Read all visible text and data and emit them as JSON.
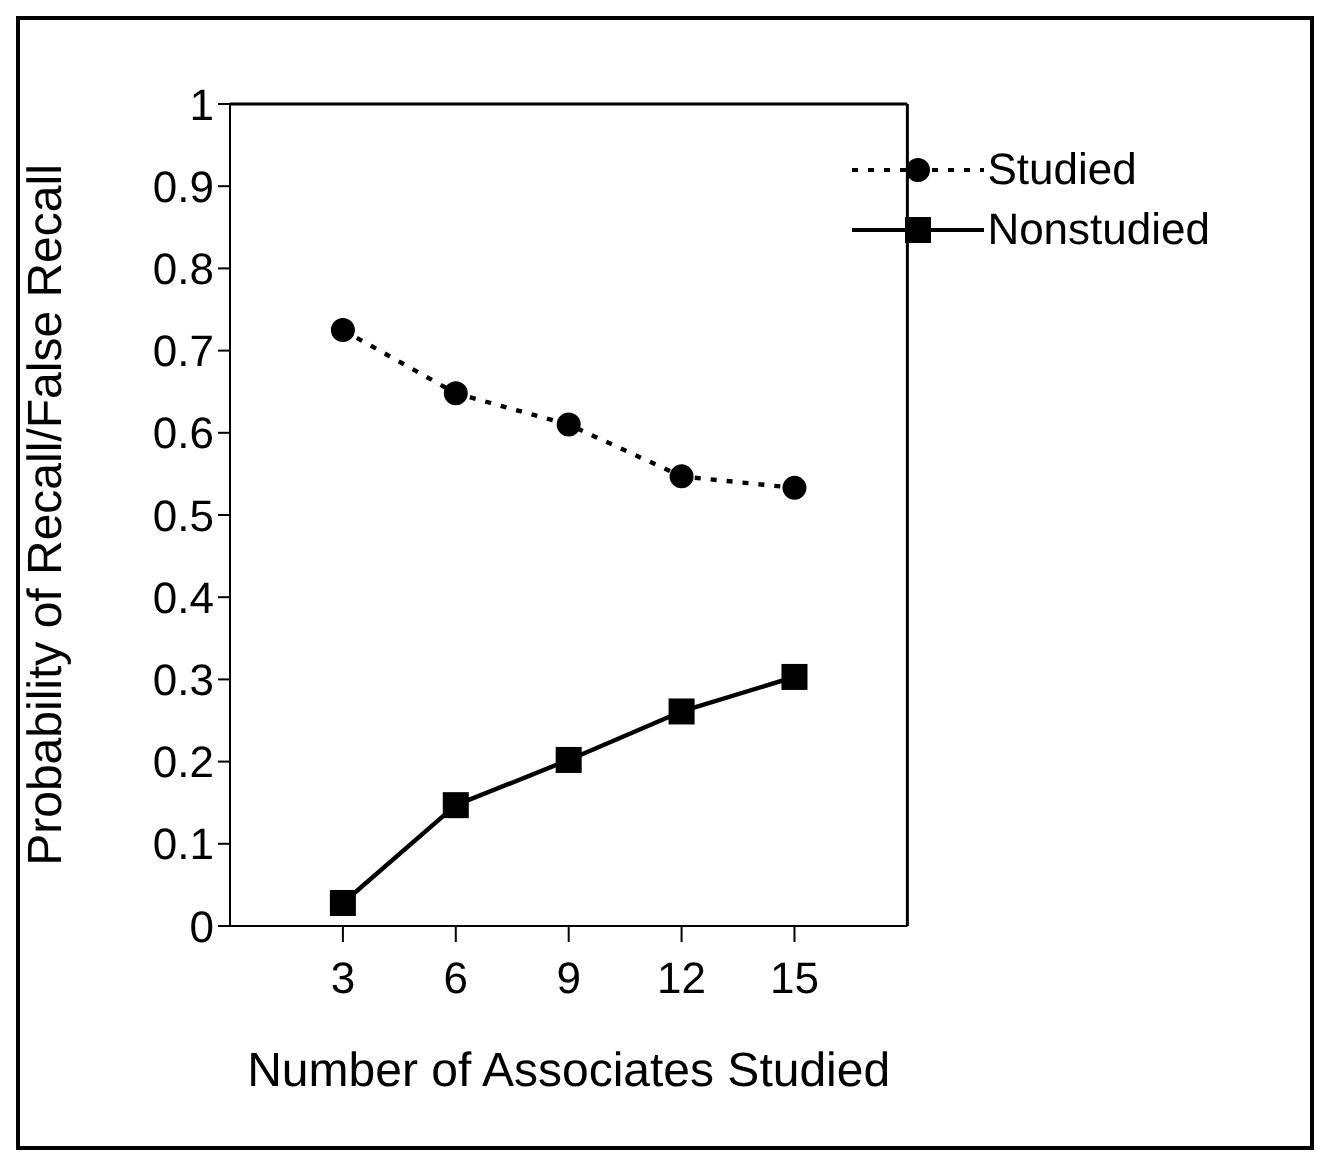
{
  "chart_data": {
    "type": "line",
    "xlabel": "Number of Associates Studied",
    "ylabel": "Probability of Recall/False Recall",
    "x": [
      3,
      6,
      9,
      12,
      15
    ],
    "series": [
      {
        "name": "Studied",
        "color": "#000000",
        "marker": "circle",
        "line_style": "dotted",
        "values": [
          0.725,
          0.648,
          0.61,
          0.547,
          0.533
        ]
      },
      {
        "name": "Nonstudied",
        "color": "#000000",
        "marker": "square",
        "line_style": "solid",
        "values": [
          0.028,
          0.147,
          0.202,
          0.261,
          0.303
        ]
      }
    ],
    "xlim": [
      0,
      18
    ],
    "xticks": [
      3,
      6,
      9,
      12,
      15
    ],
    "ylim": [
      0,
      1
    ],
    "yticks": [
      0,
      0.1,
      0.2,
      0.3,
      0.4,
      0.5,
      0.6,
      0.7,
      0.8,
      0.9,
      1
    ],
    "grid": false,
    "legend": "top right"
  }
}
